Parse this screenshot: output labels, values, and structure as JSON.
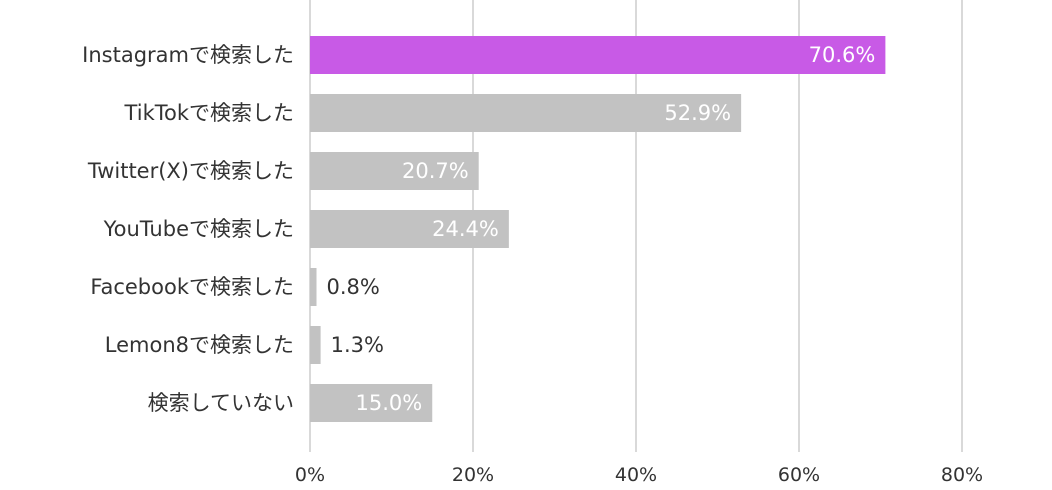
{
  "chart_data": {
    "type": "bar",
    "orientation": "horizontal",
    "categories": [
      "Instagramで検索した",
      "TikTokで検索した",
      "Twitter(X)で検索した",
      "YouTubeで検索した",
      "Facebookで検索した",
      "Lemon8で検索した",
      "検索していない"
    ],
    "values": [
      70.6,
      52.9,
      20.7,
      24.4,
      0.8,
      1.3,
      15.0
    ],
    "value_labels": [
      "70.6%",
      "52.9%",
      "20.7%",
      "24.4%",
      "0.8%",
      "1.3%",
      "15.0%"
    ],
    "xlim": [
      0,
      80
    ],
    "x_ticks": [
      0,
      20,
      40,
      60,
      80
    ],
    "x_tick_labels": [
      "0%",
      "20%",
      "40%",
      "60%",
      "80%"
    ],
    "grid": "vertical",
    "highlight_index": 0,
    "colors": {
      "highlight": "#c85ae6",
      "bar": "#c2c2c2",
      "grid": "#d9d9d9",
      "label_inside": "#ffffff",
      "label_outside": "#333333",
      "text": "#333333"
    }
  }
}
